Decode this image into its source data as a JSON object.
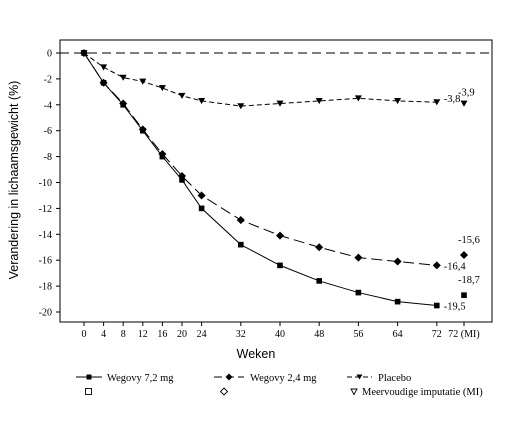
{
  "chart_data": {
    "type": "line",
    "title": "",
    "xlabel": "Weken",
    "ylabel": "Verandering in lichaamsgewicht (%)",
    "ylim": [
      -20,
      0
    ],
    "yticks": [
      0,
      -2,
      -4,
      -6,
      -8,
      -10,
      -12,
      -14,
      -16,
      -18,
      -20
    ],
    "ytick_labels": [
      "0",
      "-2",
      "-4",
      "-6",
      "-8",
      "-10",
      "-12",
      "-14",
      "-16",
      "-18",
      "-20"
    ],
    "xticks": [
      0,
      4,
      8,
      12,
      16,
      20,
      24,
      32,
      40,
      48,
      56,
      64,
      72,
      "72 (MI)"
    ],
    "xtick_labels": [
      "0",
      "4",
      "8",
      "12",
      "16",
      "20",
      "24",
      "32",
      "40",
      "48",
      "56",
      "64",
      "72",
      "72 (MI)"
    ],
    "grid": false,
    "reference_line": 0,
    "legend_position": "bottom",
    "series": [
      {
        "name": "Wegovy 7,2 mg",
        "line_style": "solid",
        "marker": "square",
        "color": "#000000",
        "x": [
          0,
          4,
          8,
          12,
          16,
          20,
          24,
          32,
          40,
          48,
          56,
          64,
          72
        ],
        "y": [
          0,
          -2.3,
          -4.0,
          -6.0,
          -8.0,
          -9.8,
          -12.0,
          -14.8,
          -16.4,
          -17.6,
          -18.5,
          -19.2,
          -19.5
        ],
        "end_label": "-19,5",
        "mi_value": -18.7,
        "mi_label": "-18,7"
      },
      {
        "name": "Wegovy 2,4 mg",
        "line_style": "long-dash",
        "marker": "diamond",
        "color": "#000000",
        "x": [
          0,
          4,
          8,
          12,
          16,
          20,
          24,
          32,
          40,
          48,
          56,
          64,
          72
        ],
        "y": [
          0,
          -2.3,
          -3.9,
          -5.9,
          -7.8,
          -9.5,
          -11.0,
          -12.9,
          -14.1,
          -15.0,
          -15.8,
          -16.1,
          -16.4
        ],
        "end_label": "-16,4",
        "mi_value": -15.6,
        "mi_label": "-15,6"
      },
      {
        "name": "Placebo",
        "line_style": "short-dash",
        "marker": "triangle-down",
        "color": "#000000",
        "x": [
          0,
          4,
          8,
          12,
          16,
          20,
          24,
          32,
          40,
          48,
          56,
          64,
          72
        ],
        "y": [
          0,
          -1.1,
          -1.9,
          -2.2,
          -2.7,
          -3.3,
          -3.7,
          -4.1,
          -3.9,
          -3.7,
          -3.5,
          -3.7,
          -3.8
        ],
        "end_label": "-3,8",
        "mi_value": -3.9,
        "mi_label": "-3,9"
      }
    ],
    "legend": {
      "row1": [
        "Wegovy 7,2 mg",
        "Wegovy 2,4 mg",
        "Placebo"
      ],
      "mi_label": "Meervoudige imputatie (MI)"
    }
  }
}
